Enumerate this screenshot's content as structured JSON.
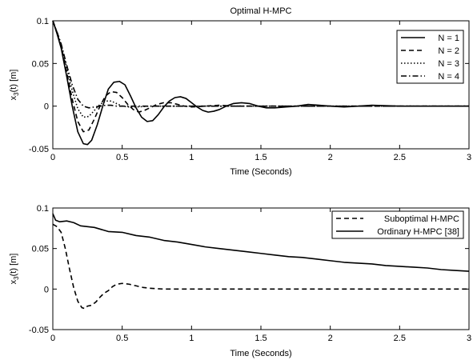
{
  "chart_data": [
    {
      "type": "line",
      "title": "Optimal H-MPC",
      "xlabel": "Time (Seconds)",
      "ylabel_main": "x",
      "ylabel_sub": "3",
      "ylabel_rest": "(t) [m]",
      "xlim": [
        0,
        3
      ],
      "ylim": [
        -0.05,
        0.1
      ],
      "x_ticks": [
        0,
        0.5,
        1,
        1.5,
        2,
        2.5,
        3
      ],
      "x_tick_labels": [
        "0",
        "0.5",
        "1",
        "1.5",
        "2",
        "2.5",
        "3"
      ],
      "y_ticks": [
        -0.05,
        0,
        0.05,
        0.1
      ],
      "y_tick_labels": [
        "-0.05",
        "0",
        "0.05",
        "0.1"
      ],
      "grid": false,
      "legend_position": "top-right",
      "series": [
        {
          "name": "N = 1",
          "dash": "solid",
          "x": [
            0,
            0.03,
            0.06,
            0.1,
            0.14,
            0.18,
            0.22,
            0.25,
            0.28,
            0.32,
            0.36,
            0.4,
            0.44,
            0.48,
            0.52,
            0.56,
            0.6,
            0.64,
            0.68,
            0.72,
            0.76,
            0.8,
            0.84,
            0.88,
            0.92,
            0.96,
            1.0,
            1.04,
            1.08,
            1.12,
            1.16,
            1.2,
            1.25,
            1.3,
            1.36,
            1.42,
            1.48,
            1.54,
            1.6,
            1.68,
            1.76,
            1.84,
            1.92,
            2.0,
            2.1,
            2.2,
            2.3,
            2.5,
            2.75,
            3.0
          ],
          "y": [
            0.1,
            0.085,
            0.068,
            0.035,
            0.0,
            -0.03,
            -0.044,
            -0.045,
            -0.04,
            -0.022,
            0.0,
            0.02,
            0.028,
            0.029,
            0.025,
            0.012,
            -0.002,
            -0.013,
            -0.018,
            -0.017,
            -0.01,
            -0.001,
            0.006,
            0.01,
            0.011,
            0.009,
            0.004,
            -0.001,
            -0.005,
            -0.007,
            -0.006,
            -0.004,
            0.0,
            0.003,
            0.004,
            0.003,
            0.0,
            -0.002,
            -0.002,
            -0.001,
            0.0,
            0.002,
            0.001,
            0.0,
            -0.001,
            0.0,
            0.001,
            0.0,
            0.0,
            0.0
          ]
        },
        {
          "name": "N = 2",
          "dash": "dashed",
          "x": [
            0,
            0.03,
            0.06,
            0.1,
            0.14,
            0.18,
            0.22,
            0.26,
            0.3,
            0.34,
            0.38,
            0.42,
            0.46,
            0.5,
            0.54,
            0.58,
            0.62,
            0.66,
            0.7,
            0.75,
            0.8,
            0.85,
            0.9,
            0.95,
            1.0,
            1.1,
            1.2,
            1.3,
            1.5,
            1.8,
            2.2,
            2.6,
            3.0
          ],
          "y": [
            0.1,
            0.086,
            0.07,
            0.04,
            0.008,
            -0.018,
            -0.03,
            -0.028,
            -0.015,
            0.0,
            0.012,
            0.017,
            0.016,
            0.01,
            0.002,
            -0.004,
            -0.007,
            -0.005,
            -0.002,
            0.002,
            0.004,
            0.004,
            0.002,
            0.0,
            -0.001,
            0.0,
            0.001,
            0.0,
            0.0,
            0.0,
            0.0,
            0.0,
            0.0
          ]
        },
        {
          "name": "N = 3",
          "dash": "dotted",
          "x": [
            0,
            0.03,
            0.06,
            0.1,
            0.14,
            0.18,
            0.22,
            0.26,
            0.3,
            0.34,
            0.38,
            0.42,
            0.46,
            0.5,
            0.55,
            0.6,
            0.7,
            0.8,
            0.9,
            1.0,
            1.2,
            1.5,
            2.0,
            2.5,
            3.0
          ],
          "y": [
            0.1,
            0.087,
            0.072,
            0.045,
            0.018,
            -0.003,
            -0.013,
            -0.012,
            -0.005,
            0.002,
            0.006,
            0.006,
            0.003,
            0.0,
            -0.001,
            -0.001,
            0.0,
            0.0,
            0.0,
            0.0,
            0.0,
            0.0,
            0.0,
            0.0,
            0.0
          ]
        },
        {
          "name": "N = 4",
          "dash": "dashdot",
          "x": [
            0,
            0.03,
            0.06,
            0.1,
            0.14,
            0.18,
            0.22,
            0.26,
            0.3,
            0.34,
            0.38,
            0.42,
            0.46,
            0.5,
            0.6,
            0.7,
            0.8,
            1.0,
            1.5,
            2.0,
            2.5,
            3.0
          ],
          "y": [
            0.1,
            0.087,
            0.073,
            0.048,
            0.025,
            0.008,
            0.0,
            -0.002,
            -0.001,
            0.0,
            0.001,
            0.001,
            0.0,
            0.0,
            0.0,
            0.0,
            0.0,
            0.0,
            0.0,
            0.0,
            0.0,
            0.0
          ]
        }
      ]
    },
    {
      "type": "line",
      "title": "",
      "xlabel": "Time (Seconds)",
      "ylabel_main": "x",
      "ylabel_sub": "3",
      "ylabel_rest": "(t) [m]",
      "xlim": [
        0,
        3
      ],
      "ylim": [
        -0.05,
        0.1
      ],
      "x_ticks": [
        0,
        0.5,
        1,
        1.5,
        2,
        2.5,
        3
      ],
      "x_tick_labels": [
        "0",
        "0.5",
        "1",
        "1.5",
        "2",
        "2.5",
        "3"
      ],
      "y_ticks": [
        -0.05,
        0,
        0.05,
        0.1
      ],
      "y_tick_labels": [
        "-0.05",
        "0",
        "0.05",
        "0.1"
      ],
      "grid": false,
      "legend_position": "top-right",
      "series": [
        {
          "name": "Suboptimal H-MPC",
          "dash": "dashed",
          "x": [
            0,
            0.03,
            0.06,
            0.09,
            0.12,
            0.15,
            0.18,
            0.21,
            0.23,
            0.25,
            0.28,
            0.31,
            0.34,
            0.37,
            0.4,
            0.43,
            0.46,
            0.5,
            0.55,
            0.6,
            0.65,
            0.7,
            0.8,
            0.9,
            1.0,
            1.2,
            1.5,
            2.0,
            2.5,
            3.0
          ],
          "y": [
            0.08,
            0.077,
            0.07,
            0.05,
            0.025,
            0.002,
            -0.015,
            -0.023,
            -0.024,
            -0.021,
            -0.02,
            -0.016,
            -0.01,
            -0.005,
            -0.002,
            0.003,
            0.006,
            0.007,
            0.006,
            0.004,
            0.002,
            0.001,
            0.0,
            0.0,
            0.0,
            0.0,
            0.0,
            0.0,
            0.0,
            0.0
          ]
        },
        {
          "name": "Ordinary H-MPC [38]",
          "dash": "solid",
          "x": [
            0,
            0.02,
            0.05,
            0.1,
            0.15,
            0.2,
            0.3,
            0.4,
            0.5,
            0.6,
            0.7,
            0.8,
            0.9,
            1.0,
            1.1,
            1.2,
            1.3,
            1.4,
            1.5,
            1.6,
            1.7,
            1.8,
            1.9,
            2.0,
            2.1,
            2.2,
            2.3,
            2.4,
            2.5,
            2.6,
            2.7,
            2.8,
            2.9,
            3.0
          ],
          "y": [
            0.093,
            0.085,
            0.083,
            0.084,
            0.082,
            0.078,
            0.076,
            0.071,
            0.07,
            0.066,
            0.064,
            0.06,
            0.058,
            0.055,
            0.052,
            0.05,
            0.048,
            0.046,
            0.044,
            0.042,
            0.04,
            0.039,
            0.037,
            0.035,
            0.033,
            0.032,
            0.031,
            0.029,
            0.028,
            0.027,
            0.026,
            0.024,
            0.023,
            0.022
          ]
        }
      ]
    }
  ]
}
